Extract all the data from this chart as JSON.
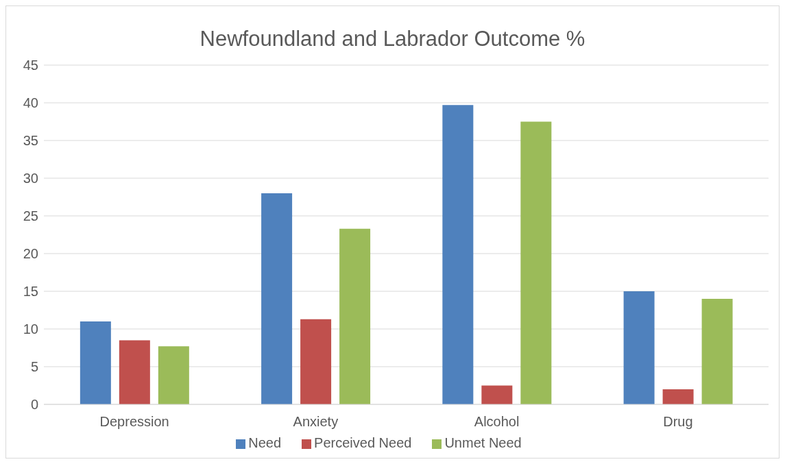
{
  "chart_data": {
    "type": "bar",
    "title": "Newfoundland and Labrador Outcome %",
    "categories": [
      "Depression",
      "Anxiety",
      "Alcohol",
      "Drug"
    ],
    "series": [
      {
        "name": "Need",
        "color": "#4f81bd",
        "values": [
          11,
          28,
          39.7,
          15
        ]
      },
      {
        "name": "Perceived Need",
        "color": "#c0504d",
        "values": [
          8.5,
          11.3,
          2.5,
          2
        ]
      },
      {
        "name": "Unmet Need",
        "color": "#9bbb59",
        "values": [
          7.7,
          23.3,
          37.5,
          14
        ]
      }
    ],
    "ylim": [
      0,
      45
    ],
    "yticks": [
      0,
      5,
      10,
      15,
      20,
      25,
      30,
      35,
      40,
      45
    ],
    "grid": "y",
    "legend": "bottom"
  }
}
